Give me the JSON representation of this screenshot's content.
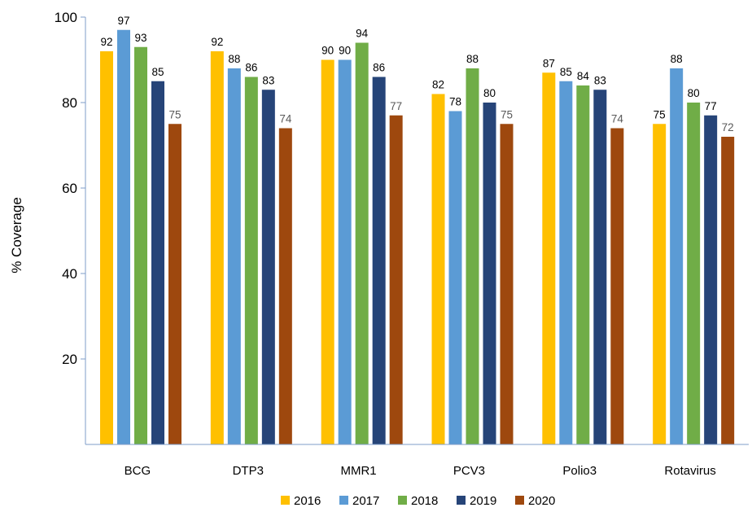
{
  "chart_data": {
    "type": "bar",
    "title": "",
    "xlabel": "",
    "ylabel": "% Coverage",
    "ylim": [
      0,
      100
    ],
    "yticks": [
      20,
      40,
      60,
      80,
      100
    ],
    "grid": false,
    "legend_position": "bottom",
    "categories": [
      "BCG",
      "DTP3",
      "MMR1",
      "PCV3",
      "Polio3",
      "Rotavirus"
    ],
    "series": [
      {
        "name": "2016",
        "color": "#FFC000",
        "values": [
          92,
          92,
          90,
          82,
          87,
          75
        ]
      },
      {
        "name": "2017",
        "color": "#5B9BD5",
        "values": [
          97,
          88,
          90,
          78,
          85,
          88
        ]
      },
      {
        "name": "2018",
        "color": "#70AD47",
        "values": [
          93,
          86,
          94,
          88,
          84,
          80
        ]
      },
      {
        "name": "2019",
        "color": "#264478",
        "values": [
          85,
          83,
          86,
          80,
          83,
          77
        ]
      },
      {
        "name": "2020",
        "color": "#9E480E",
        "values": [
          75,
          74,
          77,
          75,
          74,
          72
        ]
      }
    ],
    "data_label_colors": [
      "#000000",
      "#000000",
      "#000000",
      "#000000",
      "#595959"
    ],
    "axis_color": "#7f9ec8"
  }
}
